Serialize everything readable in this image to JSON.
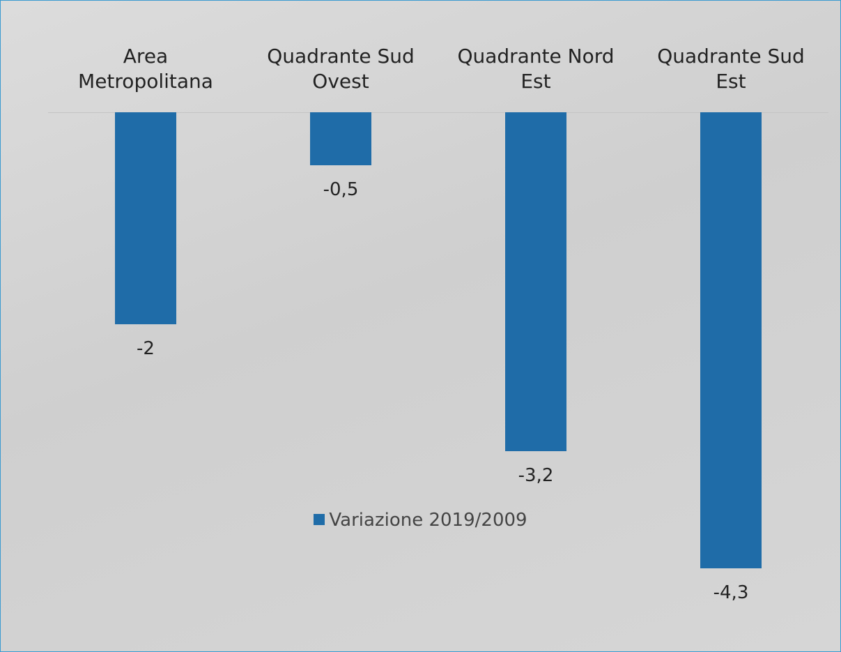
{
  "chart_data": {
    "type": "bar",
    "categories": [
      "Area Metropolitana",
      "Quadrante Sud Ovest",
      "Quadrante Nord Est",
      "Quadrante Sud Est"
    ],
    "series": [
      {
        "name": "Variazione 2019/2009",
        "color": "#1f6ca8",
        "values": [
          -2,
          -0.5,
          -3.2,
          -4.3
        ],
        "value_labels": [
          "-2",
          "-0,5",
          "-3,2",
          "-4,3"
        ]
      }
    ],
    "legend": "bottom"
  }
}
